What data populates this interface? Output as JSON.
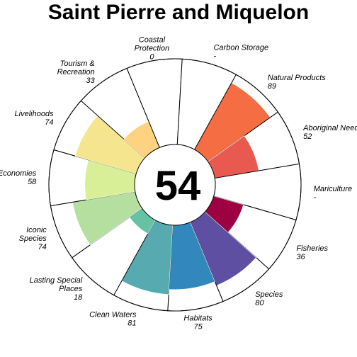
{
  "chart_data": {
    "type": "flower",
    "title": "Saint Pierre and Miquelon",
    "overall_score": "54",
    "rlim": [
      0,
      100
    ],
    "petals": [
      {
        "name": [
          "Natural Products"
        ],
        "score_label": "89",
        "value": 89,
        "color": "#F46D43"
      },
      {
        "name": [
          "Aboriginal Needs"
        ],
        "score_label": "52",
        "value": 52,
        "color": "#E85A4F"
      },
      {
        "name": [
          "Mariculture"
        ],
        "score_label": "-",
        "value": 0,
        "color": "#D53E4F"
      },
      {
        "name": [
          "Fisheries"
        ],
        "score_label": "36",
        "value": 36,
        "color": "#9E0142"
      },
      {
        "name": [
          "Species"
        ],
        "score_label": "80",
        "value": 80,
        "color": "#5E4FA2"
      },
      {
        "name": [
          "Habitats"
        ],
        "score_label": "75",
        "value": 75,
        "color": "#3288BD"
      },
      {
        "name": [
          "Clean Waters"
        ],
        "score_label": "81",
        "value": 81,
        "color": "#57AAAF"
      },
      {
        "name": [
          "Lasting Special",
          "Places"
        ],
        "score_label": "18",
        "value": 18,
        "color": "#66C2A5"
      },
      {
        "name": [
          "Iconic",
          "Species"
        ],
        "score_label": "74",
        "value": 74,
        "color": "#B5DF9F"
      },
      {
        "name": [
          "Economies"
        ],
        "score_label": "58",
        "value": 58,
        "color": "#D8EE97"
      },
      {
        "name": [
          "Livelihoods"
        ],
        "score_label": "74",
        "value": 74,
        "color": "#F6E58F"
      },
      {
        "name": [
          "Tourism &",
          "Recreation"
        ],
        "score_label": "33",
        "value": 33,
        "color": "#FDD281"
      },
      {
        "name": [
          "Coastal",
          "Protection"
        ],
        "score_label": "0",
        "value": 0,
        "color": "#FDAE61"
      },
      {
        "name": [
          "Carbon Storage"
        ],
        "score_label": "-",
        "value": 0,
        "color": "#FEE08B"
      }
    ]
  }
}
